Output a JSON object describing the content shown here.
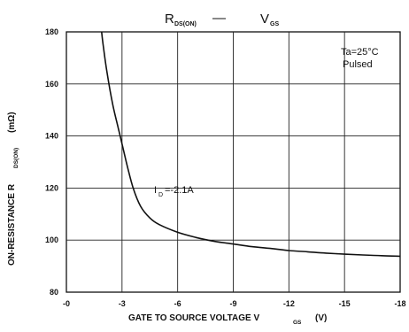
{
  "chart_data": {
    "type": "line",
    "title": {
      "left_main": "R",
      "left_sub": "DS(ON)",
      "dash": "—",
      "right_main": "V",
      "right_sub": "GS"
    },
    "xlabel": {
      "main": "GATE TO SOURCE VOLTAGE   V",
      "sub": "GS",
      "unit": "(V)"
    },
    "ylabel": {
      "main": "ON-RESISTANCE  R",
      "sub": "DS(ON)",
      "unit": "(mΩ)"
    },
    "xlim": [
      0,
      -18
    ],
    "ylim": [
      80,
      180
    ],
    "x_ticks": [
      0,
      -3,
      -6,
      -9,
      -12,
      -15,
      -18
    ],
    "x_tick_labels": [
      "-0",
      "-3",
      "-6",
      "-9",
      "-12",
      "-15",
      "-18"
    ],
    "y_ticks": [
      80,
      100,
      120,
      140,
      160,
      180
    ],
    "y_tick_labels": [
      "80",
      "100",
      "120",
      "140",
      "160",
      "180"
    ],
    "grid": true,
    "annotations": [
      {
        "id": "conditions",
        "lines": [
          "Ta=25°C",
          "Pulsed"
        ],
        "position": "top-right"
      },
      {
        "id": "current",
        "main": "I",
        "sub": "D",
        "rest": "=-2.1A",
        "at": [
          -5.3,
          119
        ]
      }
    ],
    "series": [
      {
        "x": [
          -1.9,
          -2.0,
          -2.2,
          -2.5,
          -2.8,
          -3.0,
          -3.3,
          -3.6,
          -4.0,
          -4.5,
          -5.0,
          -6.0,
          -7.0,
          -8.0,
          -9.0,
          -10.0,
          -11.0,
          -12.0,
          -13.0,
          -14.0,
          -15.0,
          -16.0,
          -17.0,
          -18.0
        ],
        "y": [
          180,
          174,
          164,
          152,
          143,
          137,
          128,
          120,
          113,
          108.5,
          106,
          103,
          101,
          99.5,
          98.5,
          97.5,
          96.8,
          96,
          95.5,
          95,
          94.6,
          94.3,
          94,
          93.8
        ]
      }
    ]
  }
}
